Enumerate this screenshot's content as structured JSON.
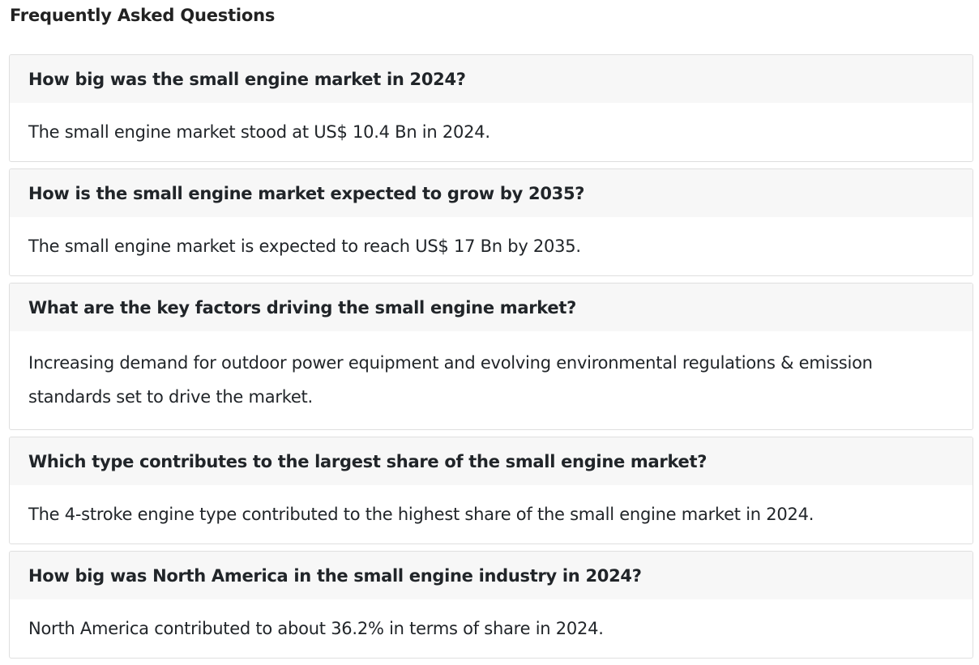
{
  "faq": {
    "title": "Frequently Asked Questions",
    "items": [
      {
        "question": "How big was the small engine market in 2024?",
        "answer": "The small engine market stood at US$ 10.4 Bn in 2024."
      },
      {
        "question": "How is the small engine market expected to grow by 2035?",
        "answer": "The small engine market is expected to reach US$ 17 Bn by 2035."
      },
      {
        "question": "What are the key factors driving the small engine market?",
        "answer": "Increasing demand for outdoor power equipment and evolving environmental regulations & emission standards set to drive the market."
      },
      {
        "question": "Which type contributes to the largest share of the small engine market?",
        "answer": "The 4-stroke engine type contributed to the highest share of the small engine market in 2024."
      },
      {
        "question": "How big was North America in the small engine industry in 2024?",
        "answer": "North America contributed to about 36.2% in terms of share in 2024."
      }
    ]
  }
}
